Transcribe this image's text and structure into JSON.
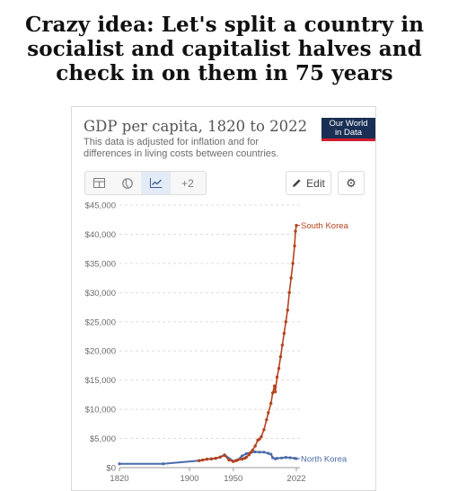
{
  "meme": {
    "caption_lines": [
      "Crazy idea: Let's split a country in",
      "socialist and capitalist halves and",
      "check in on them in 75 years"
    ]
  },
  "header": {
    "title": "GDP per capita, 1820 to 2022",
    "subtitle": "This data is adjusted for inflation and for differences in living costs between countries.",
    "logo_lines": [
      "Our World",
      "in Data"
    ]
  },
  "toolbar": {
    "table_icon": "table-icon",
    "map_icon": "globe-icon",
    "chart_icon": "line-chart-icon",
    "more_label": "+2",
    "edit_label": "Edit",
    "settings_icon": "gear-icon"
  },
  "colors": {
    "south_korea": "#b5431f",
    "north_korea": "#4b6ca8",
    "logo_bg": "#1a2f54",
    "logo_accent": "#cf1f2e"
  },
  "chart_data": {
    "type": "line",
    "title": "GDP per capita, 1820 to 2022",
    "xlabel": "",
    "ylabel": "",
    "xlim": [
      1820,
      2022
    ],
    "ylim": [
      0,
      45000
    ],
    "x_ticks": [
      "1820",
      "1900",
      "1950",
      "2022"
    ],
    "y_ticks": [
      "$0",
      "$5,000",
      "$10,000",
      "$15,000",
      "$20,000",
      "$25,000",
      "$30,000",
      "$35,000",
      "$40,000",
      "$45,000"
    ],
    "grid": true,
    "series": [
      {
        "name": "South Korea",
        "points": [
          [
            1911,
            1200
          ],
          [
            1915,
            1300
          ],
          [
            1920,
            1450
          ],
          [
            1925,
            1500
          ],
          [
            1930,
            1600
          ],
          [
            1935,
            1800
          ],
          [
            1940,
            2100
          ],
          [
            1945,
            1300
          ],
          [
            1950,
            1050
          ],
          [
            1953,
            1200
          ],
          [
            1955,
            1300
          ],
          [
            1960,
            1450
          ],
          [
            1963,
            1600
          ],
          [
            1965,
            1800
          ],
          [
            1968,
            2200
          ],
          [
            1970,
            2600
          ],
          [
            1972,
            3000
          ],
          [
            1975,
            3700
          ],
          [
            1978,
            4700
          ],
          [
            1980,
            4900
          ],
          [
            1982,
            5300
          ],
          [
            1985,
            6500
          ],
          [
            1988,
            8200
          ],
          [
            1990,
            9400
          ],
          [
            1993,
            11000
          ],
          [
            1995,
            12800
          ],
          [
            1997,
            14000
          ],
          [
            1998,
            13000
          ],
          [
            2000,
            15500
          ],
          [
            2002,
            17000
          ],
          [
            2004,
            19000
          ],
          [
            2006,
            21000
          ],
          [
            2008,
            23000
          ],
          [
            2010,
            25000
          ],
          [
            2012,
            27000
          ],
          [
            2014,
            30000
          ],
          [
            2016,
            32500
          ],
          [
            2018,
            35000
          ],
          [
            2020,
            38000
          ],
          [
            2021,
            40500
          ],
          [
            2022,
            41500
          ]
        ]
      },
      {
        "name": "North Korea",
        "points": [
          [
            1820,
            650
          ],
          [
            1870,
            650
          ],
          [
            1911,
            1200
          ],
          [
            1915,
            1300
          ],
          [
            1920,
            1450
          ],
          [
            1925,
            1500
          ],
          [
            1930,
            1600
          ],
          [
            1935,
            1800
          ],
          [
            1940,
            2200
          ],
          [
            1950,
            1100
          ],
          [
            1955,
            1300
          ],
          [
            1960,
            2000
          ],
          [
            1965,
            2400
          ],
          [
            1970,
            2600
          ],
          [
            1975,
            2700
          ],
          [
            1980,
            2650
          ],
          [
            1985,
            2650
          ],
          [
            1990,
            2450
          ],
          [
            1993,
            2300
          ],
          [
            1995,
            1700
          ],
          [
            1998,
            1500
          ],
          [
            2000,
            1600
          ],
          [
            2005,
            1650
          ],
          [
            2010,
            1750
          ],
          [
            2015,
            1700
          ],
          [
            2020,
            1600
          ],
          [
            2022,
            1550
          ]
        ]
      }
    ]
  }
}
